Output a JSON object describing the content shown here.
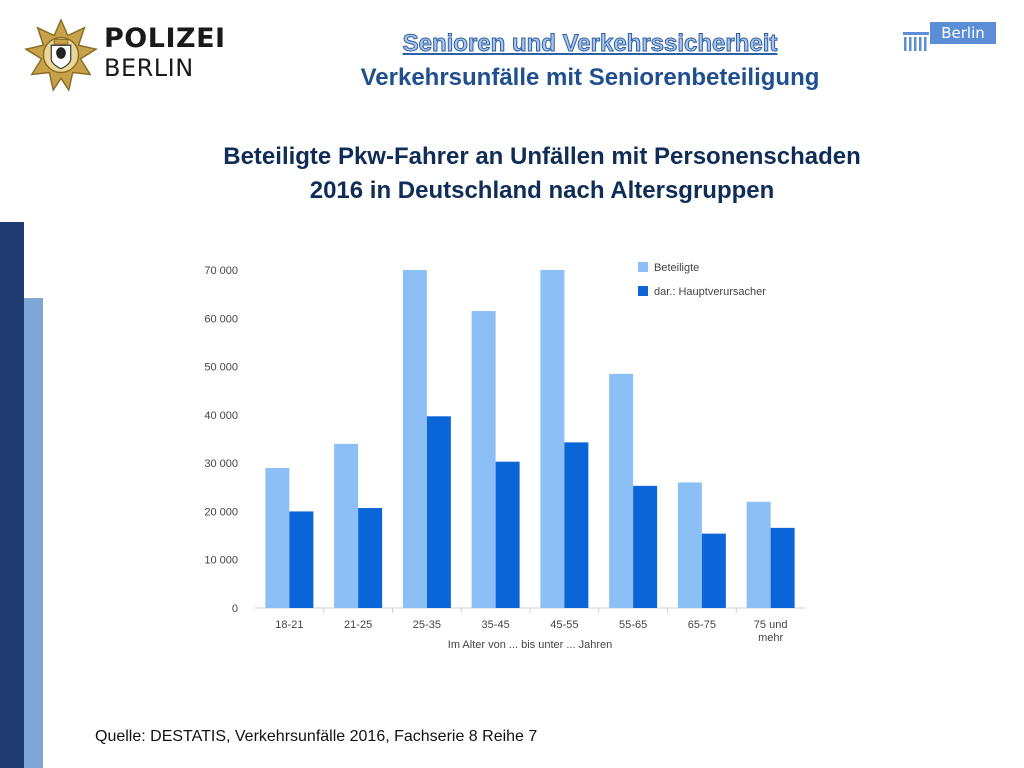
{
  "brand": {
    "police_line1": "POLIZEI",
    "police_line2": "BERLIN",
    "berlin_label": "Berlin"
  },
  "header": {
    "title": "Senioren und Verkehrssicherheit",
    "subtitle": "Verkehrsunfälle mit Seniorenbeteiligung"
  },
  "chart_title": {
    "line1": "Beteiligte Pkw-Fahrer an Unfällen mit Personenschaden",
    "line2": "2016 in Deutschland nach Altersgruppen"
  },
  "chart_data": {
    "type": "bar",
    "categories": [
      "18-21",
      "21-25",
      "25-35",
      "35-45",
      "45-55",
      "55-65",
      "65-75",
      "75 und mehr"
    ],
    "series": [
      {
        "name": "Beteiligte",
        "color": "#8bbff5",
        "values": [
          29000,
          34000,
          70000,
          61500,
          70000,
          48500,
          26000,
          22000
        ]
      },
      {
        "name": "dar.: Hauptverursacher",
        "color": "#0a66d8",
        "values": [
          20000,
          20700,
          39700,
          30300,
          34300,
          25300,
          15400,
          16600
        ]
      }
    ],
    "yticks": [
      "0",
      "10 000",
      "20 000",
      "30 000",
      "40 000",
      "50 000",
      "60 000",
      "70 000"
    ],
    "ylim": [
      0,
      70000
    ],
    "xlabel": "Im Alter von ... bis unter ... Jahren",
    "legend_position": "top-right",
    "grid": false
  },
  "footer": {
    "source": "Quelle: DESTATIS, Verkehrsunfälle 2016, Fachserie 8 Reihe 7"
  }
}
